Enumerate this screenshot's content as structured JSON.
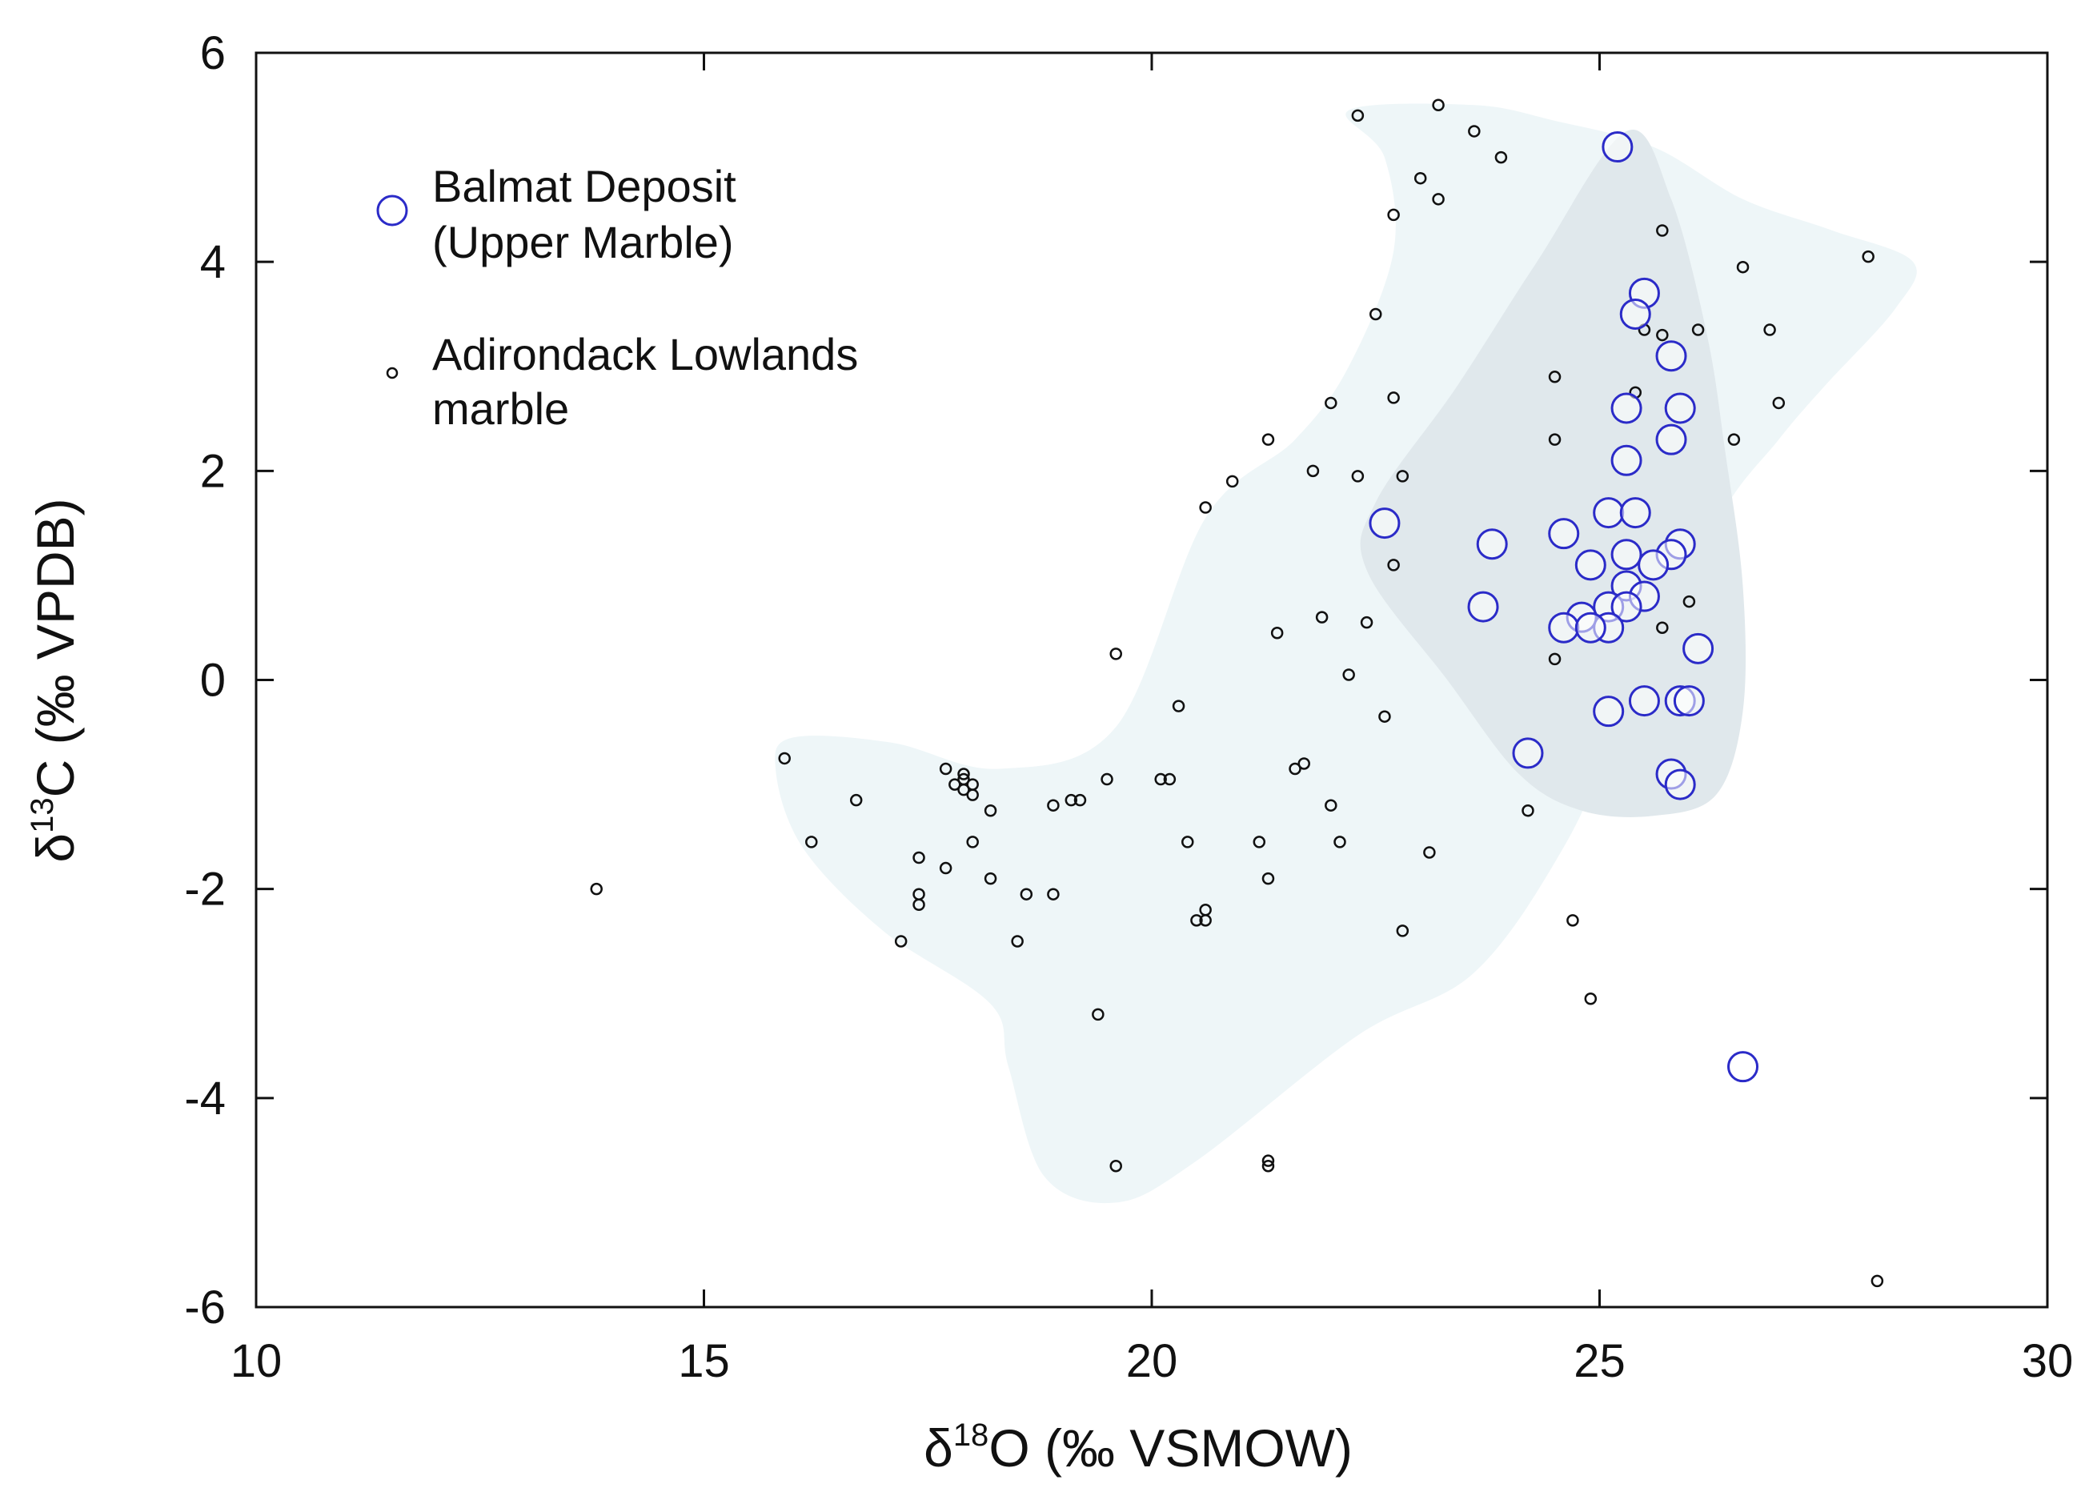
{
  "chart_data": {
    "type": "scatter",
    "title": "",
    "xlabel": {
      "prefix": "δ",
      "sup": "18",
      "rest": "O (‰ VSMOW)"
    },
    "ylabel": {
      "prefix": "δ",
      "sup": "13",
      "rest": "C (‰ VPDB)"
    },
    "xlim": [
      10,
      30
    ],
    "ylim": [
      -6,
      6
    ],
    "x_ticks": [
      10,
      15,
      20,
      25,
      30
    ],
    "y_ticks": [
      -6,
      -4,
      -2,
      0,
      2,
      4,
      6
    ],
    "x_tick_labels": [
      "10",
      "15",
      "20",
      "25",
      "30"
    ],
    "y_tick_labels": [
      "-6",
      "-4",
      "-2",
      "0",
      "2",
      "4",
      "6"
    ],
    "grid": false,
    "legend_position": "top-left",
    "colors": {
      "balmat": "#2b2bc8",
      "lowlands": "#111111",
      "outer_field": "#eef6f8",
      "inner_field": "#e0e8ec",
      "axes": "#111111"
    },
    "fields": [
      {
        "name": "Adirondack Lowlands marble field",
        "points": [
          [
            22.2,
            5.45
          ],
          [
            23.6,
            5.5
          ],
          [
            24.5,
            5.35
          ],
          [
            25.6,
            5.1
          ],
          [
            26.6,
            4.6
          ],
          [
            27.6,
            4.3
          ],
          [
            28.5,
            4.0
          ],
          [
            28.3,
            3.55
          ],
          [
            27.5,
            2.8
          ],
          [
            27.0,
            2.3
          ],
          [
            26.3,
            1.5
          ],
          [
            25.3,
            -0.3
          ],
          [
            24.6,
            -1.6
          ],
          [
            23.6,
            -2.8
          ],
          [
            22.3,
            -3.4
          ],
          [
            20.5,
            -4.6
          ],
          [
            19.6,
            -5.0
          ],
          [
            18.8,
            -4.75
          ],
          [
            18.4,
            -3.7
          ],
          [
            18.2,
            -3.1
          ],
          [
            17.0,
            -2.4
          ],
          [
            16.1,
            -1.6
          ],
          [
            15.8,
            -0.85
          ],
          [
            16.0,
            -0.55
          ],
          [
            17.1,
            -0.6
          ],
          [
            18.3,
            -0.85
          ],
          [
            19.6,
            -0.45
          ],
          [
            20.6,
            1.55
          ],
          [
            21.6,
            2.3
          ],
          [
            22.2,
            3.0
          ],
          [
            22.7,
            4.1
          ],
          [
            22.6,
            5.0
          ],
          [
            22.2,
            5.45
          ]
        ]
      },
      {
        "name": "Balmat Deposit field",
        "points": [
          [
            25.3,
            5.25
          ],
          [
            25.8,
            4.6
          ],
          [
            26.2,
            3.3
          ],
          [
            26.4,
            2.2
          ],
          [
            26.6,
            0.9
          ],
          [
            26.6,
            -0.3
          ],
          [
            26.3,
            -1.1
          ],
          [
            25.6,
            -1.3
          ],
          [
            24.8,
            -1.25
          ],
          [
            24.1,
            -0.9
          ],
          [
            23.3,
            0.0
          ],
          [
            22.4,
            1.05
          ],
          [
            22.5,
            1.7
          ],
          [
            23.4,
            2.8
          ],
          [
            24.3,
            4.0
          ],
          [
            25.3,
            5.25
          ]
        ]
      }
    ],
    "series": [
      {
        "name": "Balmat Deposit (Upper Marble)",
        "legend_line1": "Balmat Deposit",
        "legend_line2": "(Upper Marble)",
        "marker": "large-open-circle",
        "points": [
          [
            25.2,
            5.1
          ],
          [
            25.5,
            3.7
          ],
          [
            25.4,
            3.5
          ],
          [
            25.8,
            3.1
          ],
          [
            25.3,
            2.6
          ],
          [
            25.9,
            2.6
          ],
          [
            25.8,
            2.3
          ],
          [
            25.3,
            2.1
          ],
          [
            25.1,
            1.6
          ],
          [
            25.4,
            1.6
          ],
          [
            22.6,
            1.5
          ],
          [
            24.6,
            1.4
          ],
          [
            23.8,
            1.3
          ],
          [
            25.9,
            1.3
          ],
          [
            25.3,
            1.2
          ],
          [
            25.8,
            1.2
          ],
          [
            24.9,
            1.1
          ],
          [
            25.6,
            1.1
          ],
          [
            25.3,
            0.9
          ],
          [
            25.5,
            0.8
          ],
          [
            23.7,
            0.7
          ],
          [
            25.1,
            0.7
          ],
          [
            25.3,
            0.7
          ],
          [
            24.8,
            0.6
          ],
          [
            24.6,
            0.5
          ],
          [
            25.1,
            0.5
          ],
          [
            24.9,
            0.5
          ],
          [
            26.1,
            0.3
          ],
          [
            25.5,
            -0.2
          ],
          [
            25.9,
            -0.2
          ],
          [
            26.0,
            -0.2
          ],
          [
            25.1,
            -0.3
          ],
          [
            24.2,
            -0.7
          ],
          [
            25.8,
            -0.9
          ],
          [
            25.9,
            -1.0
          ],
          [
            26.6,
            -3.7
          ]
        ]
      },
      {
        "name": "Adirondack Lowlands marble",
        "legend_line1": "Adirondack Lowlands",
        "legend_line2": "marble",
        "marker": "small-open-circle",
        "points": [
          [
            23.2,
            5.5
          ],
          [
            22.3,
            5.4
          ],
          [
            23.6,
            5.25
          ],
          [
            23.9,
            5.0
          ],
          [
            23.0,
            4.8
          ],
          [
            23.2,
            4.6
          ],
          [
            22.7,
            4.45
          ],
          [
            25.7,
            4.3
          ],
          [
            28.0,
            4.05
          ],
          [
            26.6,
            3.95
          ],
          [
            22.5,
            3.5
          ],
          [
            25.5,
            3.35
          ],
          [
            26.1,
            3.35
          ],
          [
            26.9,
            3.35
          ],
          [
            25.7,
            3.3
          ],
          [
            24.5,
            2.9
          ],
          [
            25.4,
            2.75
          ],
          [
            22.7,
            2.7
          ],
          [
            22.0,
            2.65
          ],
          [
            27.0,
            2.65
          ],
          [
            21.3,
            2.3
          ],
          [
            24.5,
            2.3
          ],
          [
            26.5,
            2.3
          ],
          [
            21.8,
            2.0
          ],
          [
            22.3,
            1.95
          ],
          [
            22.8,
            1.95
          ],
          [
            20.9,
            1.9
          ],
          [
            20.6,
            1.65
          ],
          [
            22.7,
            1.1
          ],
          [
            26.0,
            0.75
          ],
          [
            21.9,
            0.6
          ],
          [
            22.4,
            0.55
          ],
          [
            25.7,
            0.5
          ],
          [
            21.4,
            0.45
          ],
          [
            19.6,
            0.25
          ],
          [
            24.5,
            0.2
          ],
          [
            22.2,
            0.05
          ],
          [
            20.3,
            -0.25
          ],
          [
            22.6,
            -0.35
          ],
          [
            15.9,
            -0.75
          ],
          [
            21.6,
            -0.85
          ],
          [
            21.7,
            -0.8
          ],
          [
            17.7,
            -0.85
          ],
          [
            17.9,
            -0.95
          ],
          [
            17.9,
            -0.9
          ],
          [
            18.0,
            -1.0
          ],
          [
            19.5,
            -0.95
          ],
          [
            20.1,
            -0.95
          ],
          [
            20.2,
            -0.95
          ],
          [
            17.8,
            -1.0
          ],
          [
            17.9,
            -1.05
          ],
          [
            18.0,
            -1.1
          ],
          [
            16.7,
            -1.15
          ],
          [
            19.1,
            -1.15
          ],
          [
            19.2,
            -1.15
          ],
          [
            18.9,
            -1.2
          ],
          [
            22.0,
            -1.2
          ],
          [
            18.2,
            -1.25
          ],
          [
            24.2,
            -1.25
          ],
          [
            16.2,
            -1.55
          ],
          [
            18.0,
            -1.55
          ],
          [
            20.4,
            -1.55
          ],
          [
            21.2,
            -1.55
          ],
          [
            22.1,
            -1.55
          ],
          [
            23.1,
            -1.65
          ],
          [
            17.4,
            -1.7
          ],
          [
            17.7,
            -1.8
          ],
          [
            18.2,
            -1.9
          ],
          [
            21.3,
            -1.9
          ],
          [
            13.8,
            -2.0
          ],
          [
            17.4,
            -2.05
          ],
          [
            18.6,
            -2.05
          ],
          [
            18.9,
            -2.05
          ],
          [
            17.4,
            -2.15
          ],
          [
            20.6,
            -2.2
          ],
          [
            20.6,
            -2.3
          ],
          [
            20.5,
            -2.3
          ],
          [
            24.7,
            -2.3
          ],
          [
            22.8,
            -2.4
          ],
          [
            17.2,
            -2.5
          ],
          [
            18.5,
            -2.5
          ],
          [
            24.9,
            -3.05
          ],
          [
            19.4,
            -3.2
          ],
          [
            21.3,
            -4.6
          ],
          [
            21.3,
            -4.65
          ],
          [
            19.6,
            -4.65
          ],
          [
            28.1,
            -5.75
          ]
        ]
      }
    ]
  }
}
